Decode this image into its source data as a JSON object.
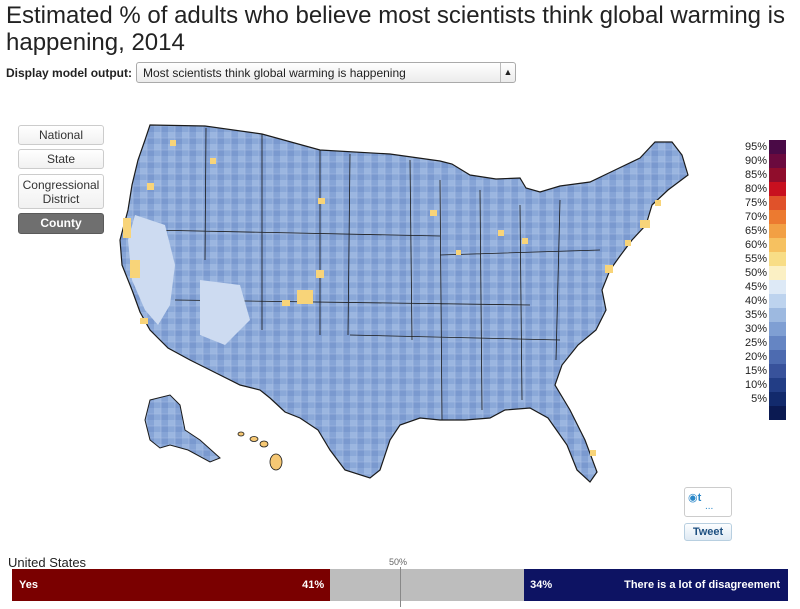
{
  "title": "Estimated % of adults who believe most scientists think global warming is happening, 2014",
  "selector": {
    "label": "Display model output:",
    "value": "Most scientists think global warming is happening"
  },
  "geo_buttons": [
    {
      "label": "National",
      "active": false
    },
    {
      "label": "State",
      "active": false
    },
    {
      "label": "Congressional District",
      "active": false
    },
    {
      "label": "County",
      "active": true
    }
  ],
  "legend": [
    {
      "label": "95%",
      "color": "#4a0a46"
    },
    {
      "label": "90%",
      "color": "#6b0a3e"
    },
    {
      "label": "85%",
      "color": "#900d2c"
    },
    {
      "label": "80%",
      "color": "#c8101f"
    },
    {
      "label": "75%",
      "color": "#e0522a"
    },
    {
      "label": "70%",
      "color": "#ec7a30"
    },
    {
      "label": "65%",
      "color": "#f2a044"
    },
    {
      "label": "60%",
      "color": "#f6c160"
    },
    {
      "label": "55%",
      "color": "#f8dd86"
    },
    {
      "label": "50%",
      "color": "#fbf0c4"
    },
    {
      "label": "45%",
      "color": "#dde9f6"
    },
    {
      "label": "40%",
      "color": "#bdd3ee"
    },
    {
      "label": "35%",
      "color": "#9db9e0"
    },
    {
      "label": "30%",
      "color": "#7f9fd3"
    },
    {
      "label": "25%",
      "color": "#6585c3"
    },
    {
      "label": "20%",
      "color": "#4d6bb0"
    },
    {
      "label": "15%",
      "color": "#38529b"
    },
    {
      "label": "10%",
      "color": "#223d85"
    },
    {
      "label": "5%",
      "color": "#122a6c"
    },
    {
      "label": "",
      "color": "#0b1a52"
    }
  ],
  "share": {
    "tweet_label": "Tweet",
    "dots": "..."
  },
  "summary": {
    "region": "United States",
    "midpoint_label": "50%",
    "yes_label": "Yes",
    "yes_pct": "41%",
    "no_pct": "34%",
    "no_label": "There is a lot of disagreement",
    "yes_value": 41,
    "no_value": 34,
    "yes_color": "#7a0000",
    "neutral_color": "#bdbdbd",
    "no_color": "#0d1363"
  }
}
